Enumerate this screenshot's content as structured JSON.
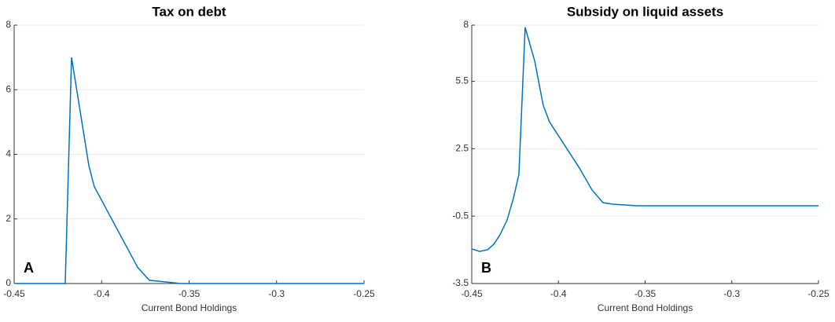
{
  "chart_data": [
    {
      "type": "line",
      "title": "Tax on debt",
      "x_label": "Current Bond Holdings",
      "annotation": "A",
      "x": [
        -0.45,
        -0.4208,
        -0.4172,
        -0.4073,
        -0.4042,
        -0.3794,
        -0.3727,
        -0.3547,
        -0.25
      ],
      "series": [
        {
          "color": "#0072bd",
          "values": [
            0,
            0,
            7,
            3.65,
            3.0,
            0.5,
            0.1,
            0,
            0
          ]
        }
      ],
      "xlim": [
        -0.45,
        -0.25
      ],
      "xticks": [
        -0.45,
        -0.4,
        -0.35,
        -0.3,
        -0.25
      ],
      "ylim": [
        0,
        8
      ],
      "yticks": [
        0,
        2,
        4,
        6,
        8
      ],
      "grid": true
    },
    {
      "type": "line",
      "title": "Subsidy on liquid assets",
      "x_label": "Current Bond Holdings",
      "annotation": "B",
      "x": [
        -0.45,
        -0.4455,
        -0.4409,
        -0.4373,
        -0.4337,
        -0.4296,
        -0.426,
        -0.4228,
        -0.4192,
        -0.4137,
        -0.4088,
        -0.4052,
        -0.3879,
        -0.3806,
        -0.3743,
        -0.3685,
        -0.3548,
        -0.25
      ],
      "series": [
        {
          "color": "#0072bd",
          "values": [
            -1.96,
            -2.07,
            -2.0,
            -1.75,
            -1.33,
            -0.67,
            0.28,
            1.36,
            7.9,
            6.4,
            4.44,
            3.7,
            1.64,
            0.66,
            0.1,
            0.03,
            -0.04,
            -0.04
          ]
        }
      ],
      "xlim": [
        -0.45,
        -0.25
      ],
      "xticks": [
        -0.45,
        -0.4,
        -0.35,
        -0.3,
        -0.25
      ],
      "ylim": [
        -3.5,
        8
      ],
      "yticks": [
        -3.5,
        -0.5,
        2.5,
        5.5,
        8
      ],
      "grid": true
    }
  ]
}
